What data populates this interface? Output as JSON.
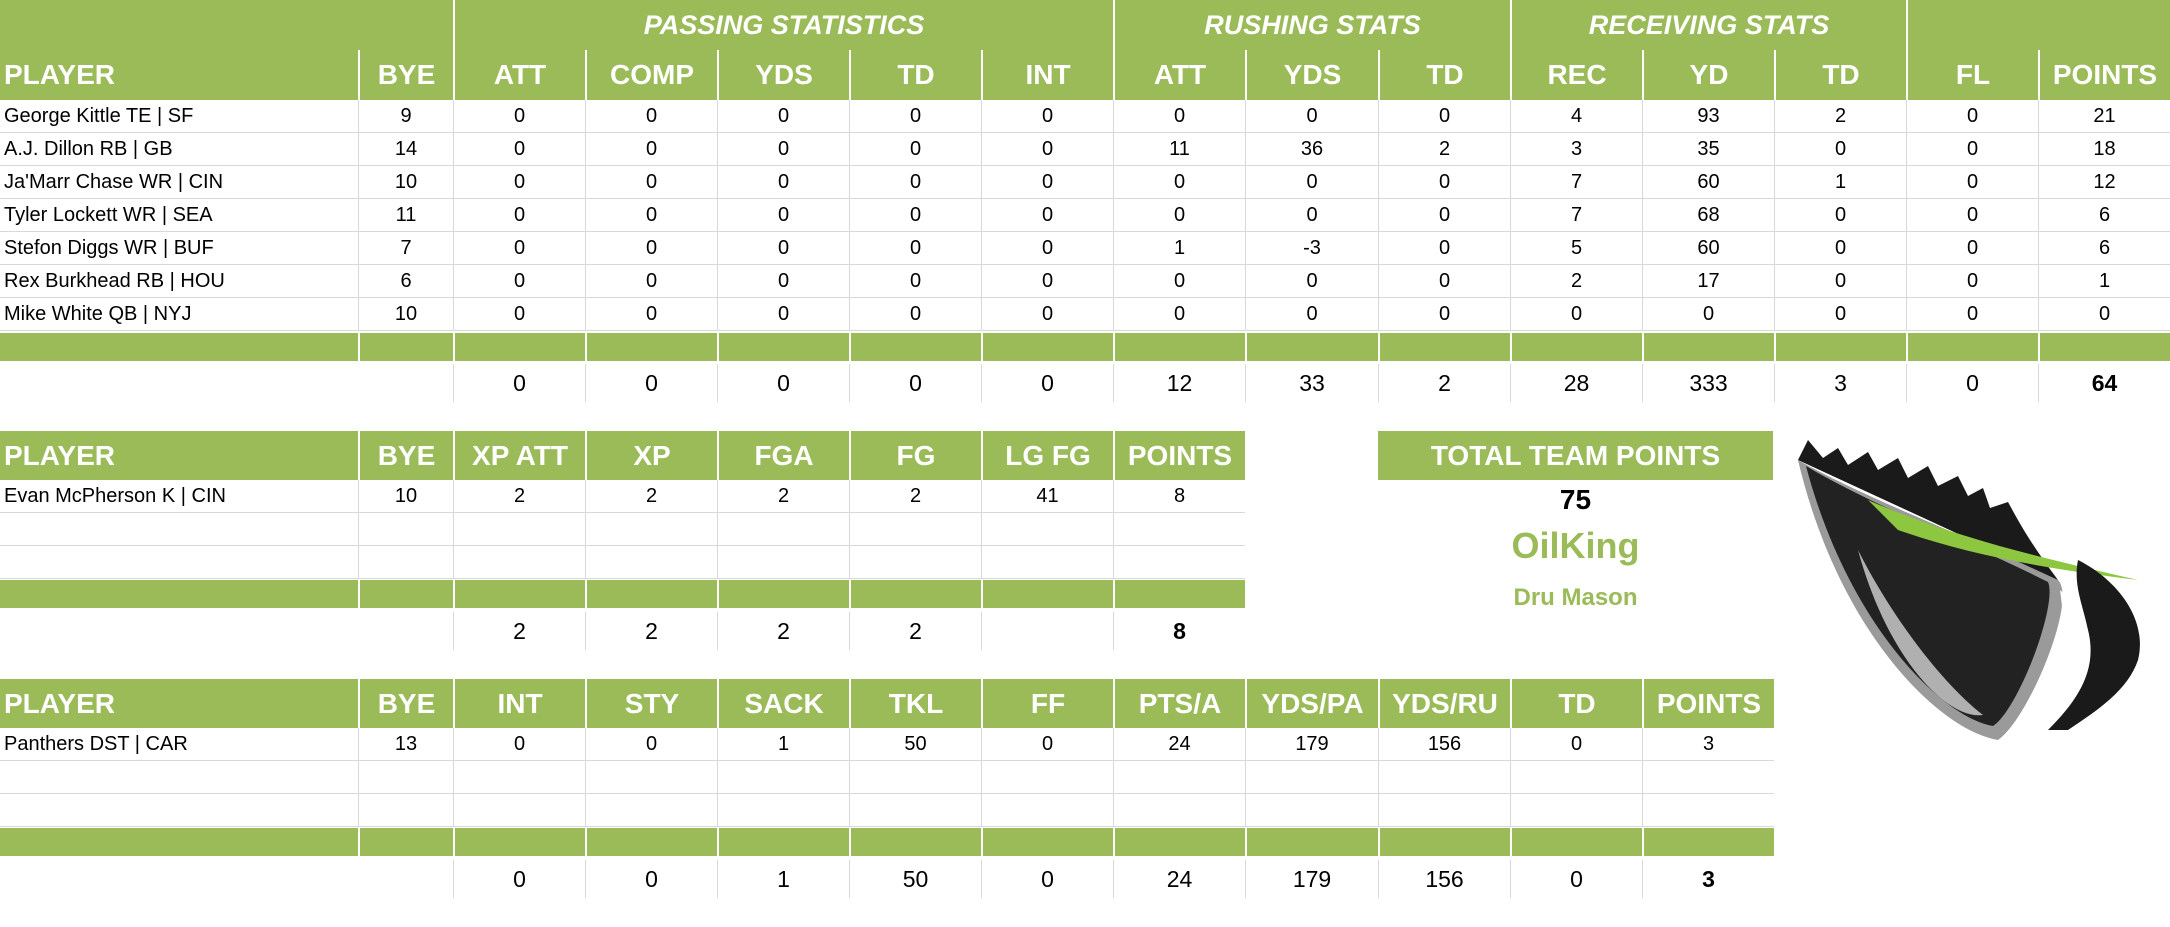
{
  "colors": {
    "accent": "#9bbb59",
    "header_text": "#ffffff",
    "team_text": "#9bbb59"
  },
  "offense": {
    "groups": [
      "PASSING STATISTICS",
      "RUSHING STATS",
      "RECEIVING STATS"
    ],
    "headers": [
      "PLAYER",
      "BYE",
      "ATT",
      "COMP",
      "YDS",
      "TD",
      "INT",
      "ATT",
      "YDS",
      "TD",
      "REC",
      "YD",
      "TD",
      "FL",
      "POINTS"
    ],
    "rows": [
      [
        "George Kittle TE | SF",
        "9",
        "0",
        "0",
        "0",
        "0",
        "0",
        "0",
        "0",
        "0",
        "4",
        "93",
        "2",
        "0",
        "21"
      ],
      [
        "A.J. Dillon RB | GB",
        "14",
        "0",
        "0",
        "0",
        "0",
        "0",
        "11",
        "36",
        "2",
        "3",
        "35",
        "0",
        "0",
        "18"
      ],
      [
        "Ja'Marr Chase WR | CIN",
        "10",
        "0",
        "0",
        "0",
        "0",
        "0",
        "0",
        "0",
        "0",
        "7",
        "60",
        "1",
        "0",
        "12"
      ],
      [
        "Tyler Lockett WR | SEA",
        "11",
        "0",
        "0",
        "0",
        "0",
        "0",
        "0",
        "0",
        "0",
        "7",
        "68",
        "0",
        "0",
        "6"
      ],
      [
        "Stefon Diggs WR | BUF",
        "7",
        "0",
        "0",
        "0",
        "0",
        "0",
        "1",
        "-3",
        "0",
        "5",
        "60",
        "0",
        "0",
        "6"
      ],
      [
        "Rex Burkhead RB | HOU",
        "6",
        "0",
        "0",
        "0",
        "0",
        "0",
        "0",
        "0",
        "0",
        "2",
        "17",
        "0",
        "0",
        "1"
      ],
      [
        "Mike White QB | NYJ",
        "10",
        "0",
        "0",
        "0",
        "0",
        "0",
        "0",
        "0",
        "0",
        "0",
        "0",
        "0",
        "0",
        "0"
      ]
    ],
    "totals": [
      "0",
      "0",
      "0",
      "0",
      "0",
      "12",
      "33",
      "2",
      "28",
      "333",
      "3",
      "0",
      "64"
    ]
  },
  "kicker": {
    "headers": [
      "PLAYER",
      "BYE",
      "XP ATT",
      "XP",
      "FGA",
      "FG",
      "LG FG",
      "POINTS"
    ],
    "rows": [
      [
        "Evan McPherson K | CIN",
        "10",
        "2",
        "2",
        "2",
        "2",
        "41",
        "8"
      ]
    ],
    "totals": [
      "2",
      "2",
      "2",
      "2",
      "",
      "8"
    ]
  },
  "defense": {
    "headers": [
      "PLAYER",
      "BYE",
      "INT",
      "STY",
      "SACK",
      "TKL",
      "FF",
      "PTS/A",
      "YDS/PA",
      "YDS/RU",
      "TD",
      "POINTS"
    ],
    "rows": [
      [
        "Panthers DST | CAR",
        "13",
        "0",
        "0",
        "1",
        "50",
        "0",
        "24",
        "179",
        "156",
        "0",
        "3"
      ]
    ],
    "totals": [
      "0",
      "0",
      "1",
      "50",
      "0",
      "24",
      "179",
      "156",
      "0",
      "3"
    ]
  },
  "team": {
    "total_label": "TOTAL TEAM POINTS",
    "total_points": "75",
    "team_name": "OilKing",
    "owner": "Dru Mason"
  },
  "logo": {
    "icon": "king-logo"
  }
}
